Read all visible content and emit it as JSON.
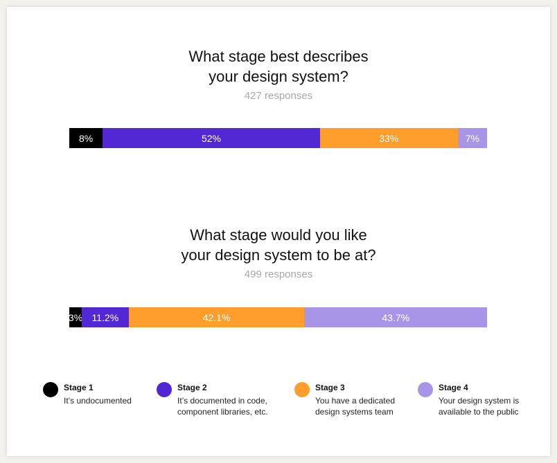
{
  "chart_data": [
    {
      "type": "bar",
      "orientation": "horizontal-stacked-100",
      "title": "What stage best describes\nyour design system?",
      "subtitle": "427 responses",
      "series": [
        {
          "name": "Stage 1",
          "value": 8,
          "label": "8%",
          "color": "#000000"
        },
        {
          "name": "Stage 2",
          "value": 52,
          "label": "52%",
          "color": "#5228d4"
        },
        {
          "name": "Stage 3",
          "value": 33,
          "label": "33%",
          "color": "#ff9e2c"
        },
        {
          "name": "Stage 4",
          "value": 7,
          "label": "7%",
          "color": "#a995e8"
        }
      ]
    },
    {
      "type": "bar",
      "orientation": "horizontal-stacked-100",
      "title": "What stage would you like\nyour design system to be at?",
      "subtitle": "499 responses",
      "series": [
        {
          "name": "Stage 1",
          "value": 3,
          "label": "3%",
          "color": "#000000"
        },
        {
          "name": "Stage 2",
          "value": 11.2,
          "label": "11.2%",
          "color": "#5228d4"
        },
        {
          "name": "Stage 3",
          "value": 42.1,
          "label": "42.1%",
          "color": "#ff9e2c"
        },
        {
          "name": "Stage 4",
          "value": 43.7,
          "label": "43.7%",
          "color": "#a995e8"
        }
      ]
    }
  ],
  "legend": {
    "placement": "bottom",
    "items": [
      {
        "name": "Stage 1",
        "desc": "It’s undocumented",
        "color": "#000000"
      },
      {
        "name": "Stage 2",
        "desc": "It’s documented in code, component libraries, etc.",
        "color": "#5228d4"
      },
      {
        "name": "Stage 3",
        "desc": "You have a dedicated design systems team",
        "color": "#ff9e2c"
      },
      {
        "name": "Stage 4",
        "desc": "Your design system is available to the public",
        "color": "#a995e8"
      }
    ]
  }
}
